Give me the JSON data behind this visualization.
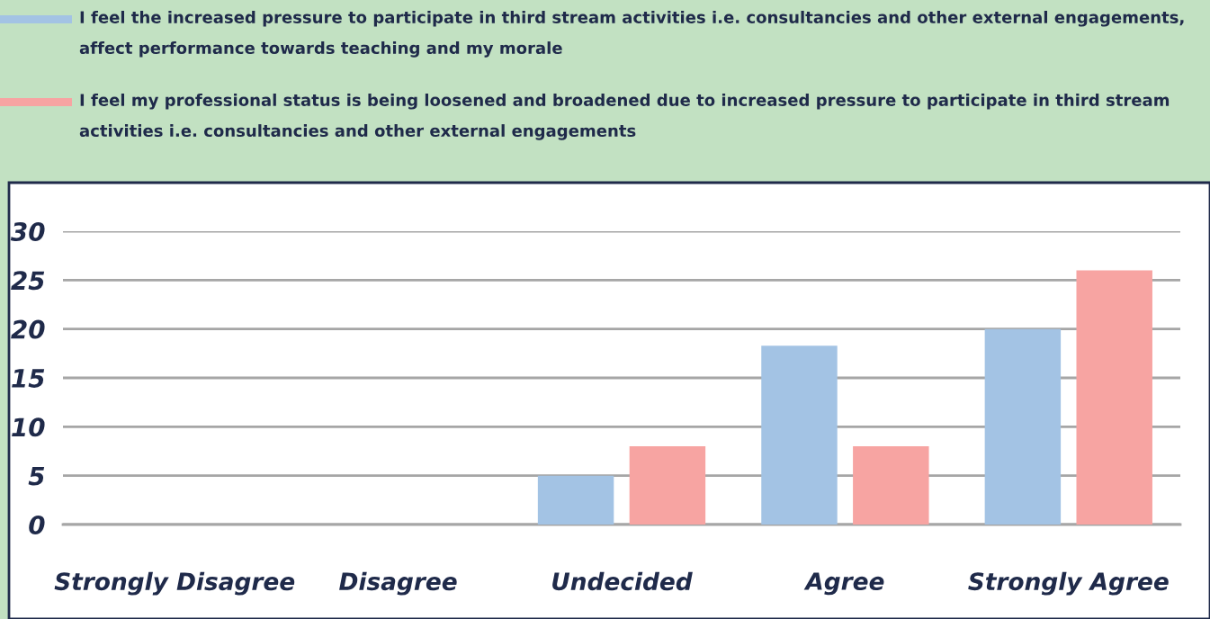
{
  "chart_data": {
    "type": "bar",
    "categories": [
      "Strongly Disagree",
      "Disagree",
      "Undecided",
      "Agree",
      "Strongly Agree"
    ],
    "series": [
      {
        "name": "I feel the increased pressure to participate in third stream activities i.e. consultancies and other external engagements, affect performance towards teaching and my morale",
        "color": "#a3c3e4",
        "values": [
          0,
          0,
          5,
          18.3,
          20
        ]
      },
      {
        "name": "I feel my professional status is being loosened and broadened due to increased pressure to participate in third stream activities i.e. consultancies and other external engagements",
        "color": "#f7a4a2",
        "values": [
          0,
          0,
          8,
          8,
          26
        ]
      }
    ],
    "ylim": [
      0,
      30
    ],
    "yticks": [
      0,
      5,
      10,
      15,
      20,
      25,
      30
    ],
    "grid": "y",
    "legend": "top"
  }
}
